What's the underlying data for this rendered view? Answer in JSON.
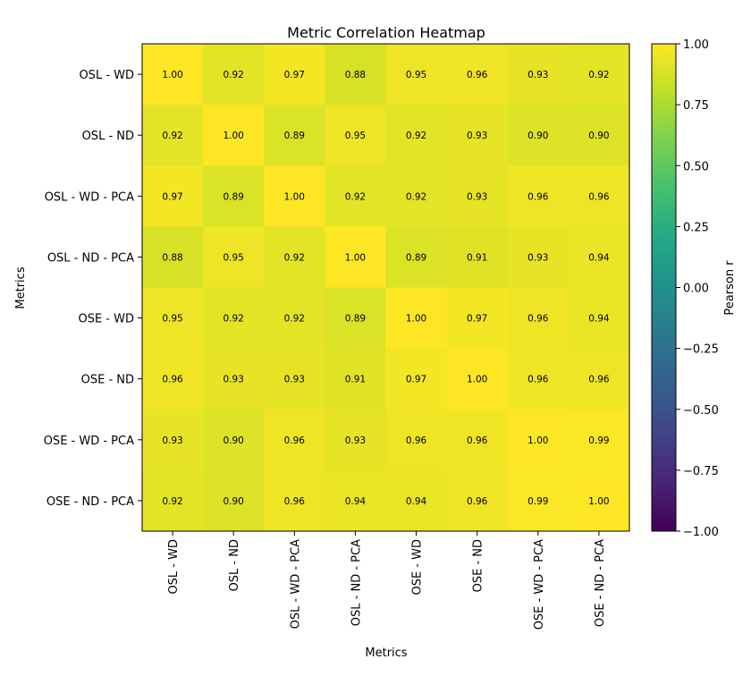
{
  "chart_data": {
    "type": "heatmap",
    "title": "Metric Correlation Heatmap",
    "xlabel": "Metrics",
    "ylabel": "Metrics",
    "row_labels": [
      "OSL - WD",
      "OSL - ND",
      "OSL - WD - PCA",
      "OSL - ND - PCA",
      "OSE - WD",
      "OSE - ND",
      "OSE - WD - PCA",
      "OSE - ND - PCA"
    ],
    "col_labels": [
      "OSL - WD",
      "OSL - ND",
      "OSL - WD - PCA",
      "OSL - ND - PCA",
      "OSE - WD",
      "OSE - ND",
      "OSE - WD - PCA",
      "OSE - ND - PCA"
    ],
    "values": [
      [
        1.0,
        0.92,
        0.97,
        0.88,
        0.95,
        0.96,
        0.93,
        0.92
      ],
      [
        0.92,
        1.0,
        0.89,
        0.95,
        0.92,
        0.93,
        0.9,
        0.9
      ],
      [
        0.97,
        0.89,
        1.0,
        0.92,
        0.92,
        0.93,
        0.96,
        0.96
      ],
      [
        0.88,
        0.95,
        0.92,
        1.0,
        0.89,
        0.91,
        0.93,
        0.94
      ],
      [
        0.95,
        0.92,
        0.92,
        0.89,
        1.0,
        0.97,
        0.96,
        0.94
      ],
      [
        0.96,
        0.93,
        0.93,
        0.91,
        0.97,
        1.0,
        0.96,
        0.96
      ],
      [
        0.93,
        0.9,
        0.96,
        0.93,
        0.96,
        0.96,
        1.0,
        0.99
      ],
      [
        0.92,
        0.9,
        0.96,
        0.94,
        0.94,
        0.96,
        0.99,
        1.0
      ]
    ],
    "value_labels": [
      [
        "1.00",
        "0.92",
        "0.97",
        "0.88",
        "0.95",
        "0.96",
        "0.93",
        "0.92"
      ],
      [
        "0.92",
        "1.00",
        "0.89",
        "0.95",
        "0.92",
        "0.93",
        "0.90",
        "0.90"
      ],
      [
        "0.97",
        "0.89",
        "1.00",
        "0.92",
        "0.92",
        "0.93",
        "0.96",
        "0.96"
      ],
      [
        "0.88",
        "0.95",
        "0.92",
        "1.00",
        "0.89",
        "0.91",
        "0.93",
        "0.94"
      ],
      [
        "0.95",
        "0.92",
        "0.92",
        "0.89",
        "1.00",
        "0.97",
        "0.96",
        "0.94"
      ],
      [
        "0.96",
        "0.93",
        "0.93",
        "0.91",
        "0.97",
        "1.00",
        "0.96",
        "0.96"
      ],
      [
        "0.93",
        "0.90",
        "0.96",
        "0.93",
        "0.96",
        "0.96",
        "1.00",
        "0.99"
      ],
      [
        "0.92",
        "0.90",
        "0.96",
        "0.94",
        "0.94",
        "0.96",
        "0.99",
        "1.00"
      ]
    ],
    "colorbar": {
      "label": "Pearson r",
      "vmin": -1.0,
      "vmax": 1.0,
      "ticks": [
        1.0,
        0.75,
        0.5,
        0.25,
        0.0,
        -0.25,
        -0.5,
        -0.75,
        -1.0
      ],
      "tick_labels": [
        "1.00",
        "0.75",
        "0.50",
        "0.25",
        "0.00",
        "−0.25",
        "−0.50",
        "−0.75",
        "−1.00"
      ],
      "colormap": "viridis"
    },
    "grid": false
  }
}
